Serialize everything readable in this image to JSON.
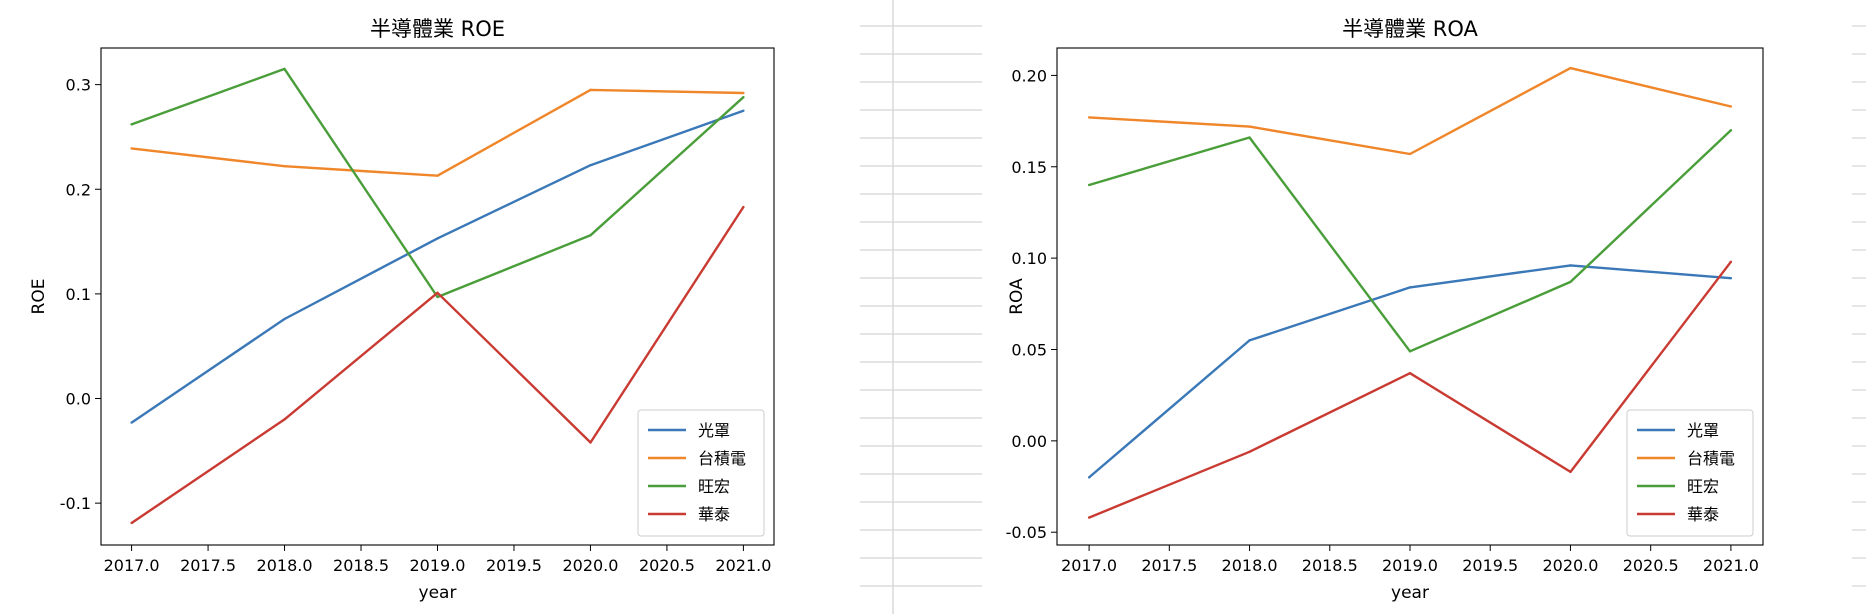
{
  "chart_data": [
    {
      "type": "line",
      "title": "半導體業 ROE",
      "xlabel": "year",
      "ylabel": "ROE",
      "x": [
        2017,
        2018,
        2019,
        2020,
        2021
      ],
      "xlim": [
        2016.8,
        2021.2
      ],
      "ylim": [
        -0.14,
        0.335
      ],
      "xticks": [
        "2017.0",
        "2017.5",
        "2018.0",
        "2018.5",
        "2019.0",
        "2019.5",
        "2020.0",
        "2020.5",
        "2021.0"
      ],
      "yticks": [
        "-0.1",
        "0.0",
        "0.1",
        "0.2",
        "0.3"
      ],
      "grid": false,
      "legend_position": "lower-right",
      "series": [
        {
          "name": "光罩",
          "color": "#3a78b8",
          "values": [
            -0.023,
            0.076,
            0.153,
            0.223,
            0.275
          ]
        },
        {
          "name": "台積電",
          "color": "#f0862a",
          "values": [
            0.239,
            0.222,
            0.213,
            0.295,
            0.292
          ]
        },
        {
          "name": "旺宏",
          "color": "#4a9e3a",
          "values": [
            0.262,
            0.315,
            0.097,
            0.156,
            0.288
          ]
        },
        {
          "name": "華泰",
          "color": "#c93b32",
          "values": [
            -0.119,
            -0.02,
            0.101,
            -0.042,
            0.183
          ]
        }
      ]
    },
    {
      "type": "line",
      "title": "半導體業 ROA",
      "xlabel": "year",
      "ylabel": "ROA",
      "x": [
        2017,
        2018,
        2019,
        2020,
        2021
      ],
      "xlim": [
        2016.8,
        2021.2
      ],
      "ylim": [
        -0.057,
        0.215
      ],
      "xticks": [
        "2017.0",
        "2017.5",
        "2018.0",
        "2018.5",
        "2019.0",
        "2019.5",
        "2020.0",
        "2020.5",
        "2021.0"
      ],
      "yticks": [
        "-0.05",
        "0.00",
        "0.05",
        "0.10",
        "0.15",
        "0.20"
      ],
      "grid": false,
      "legend_position": "lower-right",
      "series": [
        {
          "name": "光罩",
          "color": "#3a78b8",
          "values": [
            -0.02,
            0.055,
            0.084,
            0.096,
            0.089
          ]
        },
        {
          "name": "台積電",
          "color": "#f0862a",
          "values": [
            0.177,
            0.172,
            0.157,
            0.204,
            0.183
          ]
        },
        {
          "name": "旺宏",
          "color": "#4a9e3a",
          "values": [
            0.14,
            0.166,
            0.049,
            0.087,
            0.17
          ]
        },
        {
          "name": "華泰",
          "color": "#c93b32",
          "values": [
            -0.042,
            -0.006,
            0.037,
            -0.017,
            0.098
          ]
        }
      ]
    }
  ]
}
